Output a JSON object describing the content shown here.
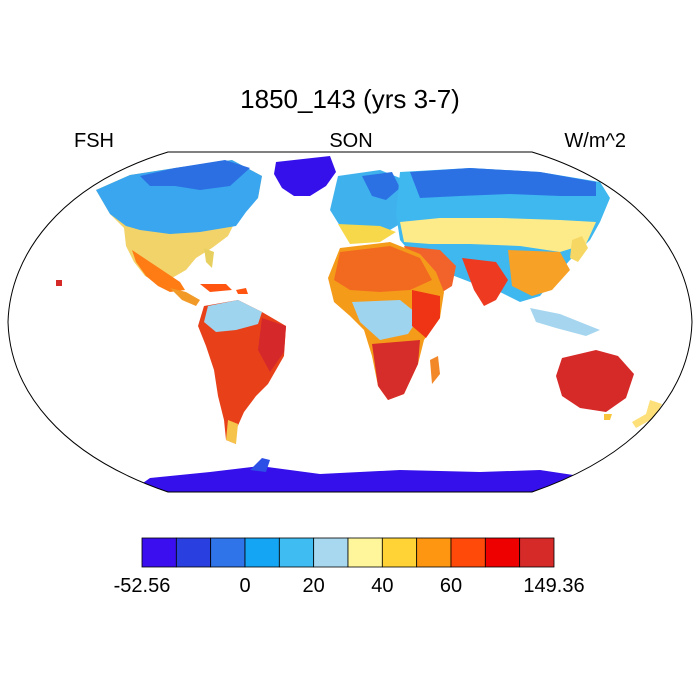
{
  "title": "1850_143 (yrs 3-7)",
  "left_string": "FSH",
  "center_string": "SON",
  "right_string": "W/m^2",
  "colorbar": {
    "colors": [
      "#3b0ef0",
      "#2a3fe0",
      "#2f74e8",
      "#14a5f5",
      "#3fbcf2",
      "#a8d8f0",
      "#fff59a",
      "#ffd236",
      "#ff9612",
      "#ff4a0a",
      "#ee0000",
      "#d62a28"
    ],
    "labels": [
      "-52.56",
      "0",
      "20",
      "40",
      "60",
      "149.36"
    ]
  },
  "map": {
    "projection": "Robinson",
    "ocean_color": "#ffffff",
    "coastline_color": "#000000"
  }
}
